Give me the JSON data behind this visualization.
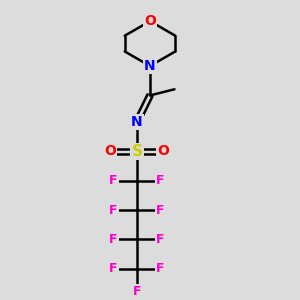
{
  "background_color": "#dcdcdc",
  "atom_colors": {
    "O": "#ff0000",
    "N": "#0000ff",
    "S": "#cccc00",
    "F": "#ff00cc",
    "C": "#000000",
    "bond": "#000000"
  },
  "figsize": [
    3.0,
    3.0
  ],
  "dpi": 100,
  "canvas_xlim": [
    -1.8,
    1.8
  ],
  "canvas_ylim": [
    -4.2,
    2.8
  ]
}
